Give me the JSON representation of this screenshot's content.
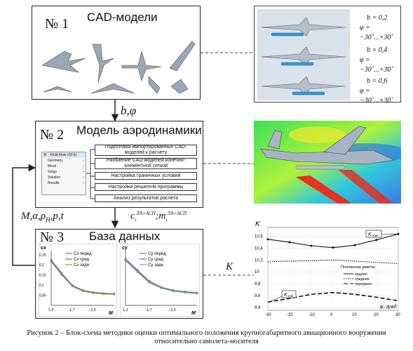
{
  "block1": {
    "number": "№ 1",
    "title": "CAD-модели"
  },
  "block2": {
    "number": "№ 2",
    "title": "Модель аэродинамики",
    "steps": [
      "Подготовка импортированных CAD-моделей к расчету",
      "Разбиение CAD-моделей конечно-элементной сеткой",
      "Настройка граничных условий",
      "Настройка решателя программы",
      "Анализ результатов расчета"
    ],
    "tree": {
      "header": "Fluid Flow (CFX)",
      "col": "B",
      "rows": [
        "Geometry",
        "Mesh",
        "Setup",
        "Solution",
        "Results"
      ]
    }
  },
  "block3": {
    "number": "№ 3",
    "title": "База данных"
  },
  "arrow_labels": {
    "b_phi": "b,φ",
    "params": "M,α,ρ",
    "params_sub": "H",
    "params_tail": ",p,t",
    "coef_c": "c",
    "coef_c_sub": "i",
    "coef_c_sup": "ЛА+АСП",
    "coef_m": ";m",
    "coef_m_sub": "i",
    "coef_m_sup": "ЛА+АСП",
    "K": "K"
  },
  "variants": [
    {
      "b": "b = 0,2",
      "phi": "φ = −30˚...+30˚"
    },
    {
      "b": "b = 0,4",
      "phi": "φ = −30˚...+30˚"
    },
    {
      "b": "b = 0,6",
      "phi": "φ = −30˚...+30˚"
    }
  ],
  "caption_line1": "Рисунок 2 – Блок-схема методики оценки оптимального положения крупногабаритного авиационного вооружения",
  "caption_line2": "относительно самолета-носителя",
  "colors": {
    "cx1": "#3a8fd8",
    "cx2": "#d84a3a",
    "cx3": "#6ab04a",
    "cy1": "#3a8fd8",
    "cy2": "#c83a8a",
    "cy3": "#6ab04a"
  },
  "chart_data": [
    {
      "type": "line",
      "ylabel": "cx",
      "xlabel": "M",
      "x": [
        1.2,
        1.45,
        1.7,
        1.95,
        2.2,
        2.45,
        2.7
      ],
      "xticks": [
        "1,2",
        "1,7",
        "2,2"
      ],
      "yticks": [
        "0,05",
        "0,1",
        "0,15",
        "0,2",
        "0,25"
      ],
      "ylim": [
        0,
        0.27
      ],
      "series": [
        {
          "name": "Cx перед",
          "values": [
            0.225,
            0.16,
            0.1,
            0.075,
            0.065,
            0.06,
            0.058
          ]
        },
        {
          "name": "Cx сред",
          "values": [
            0.22,
            0.155,
            0.097,
            0.073,
            0.063,
            0.058,
            0.056
          ]
        },
        {
          "name": "Cx задн",
          "values": [
            0.215,
            0.15,
            0.094,
            0.07,
            0.06,
            0.056,
            0.054
          ]
        }
      ]
    },
    {
      "type": "line",
      "ylabel": "cy",
      "xlabel": "M",
      "x": [
        1.2,
        1.45,
        1.7,
        1.95,
        2.2,
        2.45,
        2.7
      ],
      "xticks": [
        "1,2",
        "1,7",
        "2,2"
      ],
      "ylim": [
        0,
        0.27
      ],
      "series": [
        {
          "name": "Cy перед",
          "values": [
            0.23,
            0.175,
            0.12,
            0.09,
            0.075,
            0.068,
            0.063
          ]
        },
        {
          "name": "Cy сред",
          "values": [
            0.225,
            0.17,
            0.115,
            0.087,
            0.072,
            0.065,
            0.06
          ]
        },
        {
          "name": "Cy задн",
          "values": [
            0.22,
            0.165,
            0.112,
            0.085,
            0.07,
            0.063,
            0.058
          ]
        }
      ]
    },
    {
      "type": "line",
      "ylabel": "K",
      "xlabel": "φ, град",
      "x": [
        -30,
        -20,
        -10,
        0,
        10,
        20,
        30
      ],
      "xticks": [
        "-30",
        "-20",
        "-10",
        "0",
        "10",
        "20",
        "30"
      ],
      "yticks": [
        "9,4",
        "9,6",
        "9,8",
        "10",
        "10,2",
        "10,4",
        "10,6"
      ],
      "ylim": [
        9.35,
        10.75
      ],
      "legend_title": "Положение ракеты:",
      "annotations": {
        "kmax": "K",
        "kmax_sub": "max",
        "kmin": "K",
        "kmin_sub": "min"
      },
      "series": [
        {
          "name": "заднее",
          "style": "solid",
          "values": [
            10.55,
            10.5,
            10.44,
            10.41,
            10.45,
            10.54,
            10.64
          ]
        },
        {
          "name": "среднее",
          "style": "dotted",
          "values": [
            10.17,
            10.18,
            10.19,
            10.2,
            10.18,
            10.16,
            10.14
          ]
        },
        {
          "name": "переднее",
          "style": "dashed",
          "values": [
            9.49,
            9.55,
            9.62,
            9.65,
            9.62,
            9.57,
            9.51
          ]
        }
      ]
    }
  ]
}
